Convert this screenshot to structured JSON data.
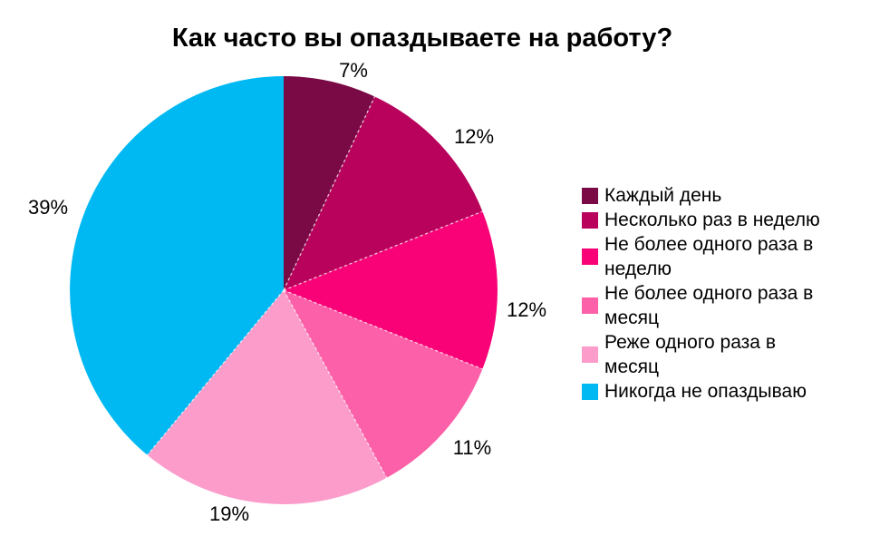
{
  "title": "Как часто вы опаздываете на работу?",
  "chart_data": {
    "type": "pie",
    "title": "Как часто вы опаздываете на работу?",
    "categories": [
      "Каждый день",
      "Несколько раз в неделю",
      "Не более одного раза в неделю",
      "Не более одного раза в месяц",
      "Реже одного раза в месяц",
      "Никогда не опаздываю"
    ],
    "values": [
      7,
      12,
      12,
      11,
      19,
      39
    ],
    "percent_labels": [
      "7%",
      "12%",
      "12%",
      "11%",
      "19%",
      "39%"
    ],
    "colors": [
      "#7A0A45",
      "#B8025C",
      "#F90277",
      "#FB60A8",
      "#FB9CCB",
      "#00B9F2"
    ],
    "start_angle_deg": 0,
    "direction": "clockwise",
    "legend_position": "right",
    "background": "#ffffff"
  },
  "legend": {
    "items": [
      {
        "label": "Каждый день",
        "color": "#7A0A45"
      },
      {
        "label": "Несколько раз в неделю",
        "color": "#B8025C"
      },
      {
        "label": "Не более одного раза в\nнеделю",
        "color": "#F90277"
      },
      {
        "label": "Не более одного раза в\nмесяц",
        "color": "#FB60A8"
      },
      {
        "label": "Реже одного раза в\nмесяц",
        "color": "#FB9CCB"
      },
      {
        "label": "Никогда не опаздываю",
        "color": "#00B9F2"
      }
    ]
  }
}
